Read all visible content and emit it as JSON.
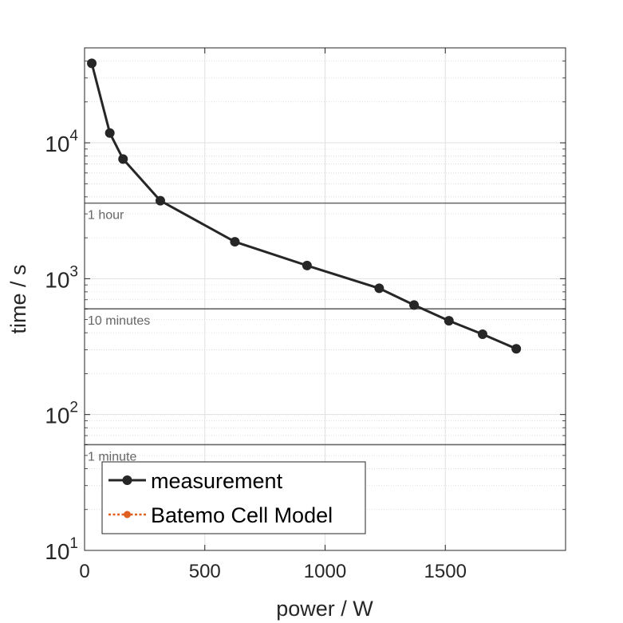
{
  "chart_data": {
    "type": "line",
    "title": "",
    "xlabel": "power / W",
    "ylabel": "time / s",
    "xlim": [
      0,
      2000
    ],
    "ylim": [
      10,
      50000
    ],
    "yscale": "log",
    "x_ticks": [
      {
        "value": 0,
        "label": "0"
      },
      {
        "value": 500,
        "label": "500"
      },
      {
        "value": 1000,
        "label": "1000"
      },
      {
        "value": 1500,
        "label": "1500"
      }
    ],
    "y_ticks": [
      {
        "value": 10,
        "base": "10",
        "exp": "1"
      },
      {
        "value": 100,
        "base": "10",
        "exp": "2"
      },
      {
        "value": 1000,
        "base": "10",
        "exp": "3"
      },
      {
        "value": 10000,
        "base": "10",
        "exp": "4"
      }
    ],
    "grid": true,
    "reference_lines": [
      {
        "value": 3600,
        "label": "1 hour"
      },
      {
        "value": 600,
        "label": "10 minutes"
      },
      {
        "value": 60,
        "label": "1 minute"
      }
    ],
    "series": [
      {
        "name": "measurement",
        "color": "#262626",
        "x": [
          30,
          105,
          160,
          315,
          625,
          925,
          1225,
          1370,
          1515,
          1655,
          1795
        ],
        "y": [
          38500,
          11800,
          7600,
          3750,
          1870,
          1250,
          850,
          640,
          490,
          390,
          305
        ]
      },
      {
        "name": "Batemo Cell Model",
        "color": "#E06020",
        "x": [],
        "y": []
      }
    ],
    "legend": {
      "position": "bottom-left",
      "entries": [
        "measurement",
        "Batemo Cell Model"
      ]
    }
  }
}
